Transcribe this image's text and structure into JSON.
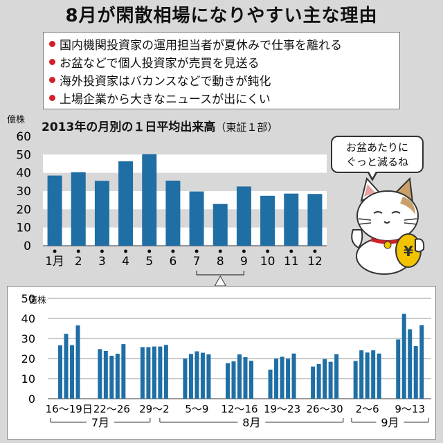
{
  "title": "8月が閑散相場になりやすい主な理由",
  "reasons": [
    "国内機関投資家の運用担当者が夏休みで仕事を離れる",
    "お盆などで個人投資家が売買を見送る",
    "海外投資家はバカンスなどで動きが鈍化",
    "上場企業から大きなニュースが出にくい"
  ],
  "speech": [
    "お盆あたりに",
    "ぐっと減るね"
  ],
  "colors": {
    "bar": "#1f6fa5",
    "bullet": "#d0202a",
    "band": "#ffffff",
    "background": "#d8d8d8"
  },
  "illustration": "maneki-neko-cat-icon",
  "chart_data": [
    {
      "type": "bar",
      "title": "2013年の月別の１日平均出来高",
      "subtitle": "（東証１部）",
      "ylabel": "億株",
      "ylim": [
        0,
        60
      ],
      "yticks": [
        0,
        10,
        20,
        30,
        40,
        50,
        60
      ],
      "categories": [
        "1月",
        "2",
        "3",
        "4",
        "5",
        "6",
        "7",
        "8",
        "9",
        "10",
        "11",
        "12"
      ],
      "values": [
        38.5,
        40.3,
        35.6,
        46.3,
        50.2,
        35.7,
        29.8,
        22.9,
        32.5,
        27.4,
        28.6,
        28.4
      ],
      "grid": "alternating bands"
    },
    {
      "type": "bar",
      "ylabel": "億株",
      "ylim": [
        0,
        50
      ],
      "yticks": [
        0,
        10,
        20,
        30,
        40,
        50
      ],
      "week_labels": [
        "16～19日",
        "22～26",
        "29～2",
        "5～9",
        "12～16",
        "19～23",
        "26～30",
        "2～6",
        "9～13"
      ],
      "month_labels": [
        "7月",
        "8月",
        "9月"
      ],
      "weeks": [
        [
          26.6,
          32.3,
          26.7,
          36.5
        ],
        [
          24.7,
          23.8,
          21.4,
          22.4,
          27.2
        ],
        [
          25.7,
          25.7,
          26.0,
          26.0,
          26.8
        ],
        [
          20.0,
          22.3,
          23.6,
          22.9,
          22.1
        ],
        [
          17.7,
          18.6,
          22.1,
          20.7,
          18.9
        ],
        [
          14.5,
          20.0,
          20.9,
          19.9,
          22.5
        ],
        [
          16.0,
          17.3,
          19.7,
          18.4,
          22.2
        ],
        [
          18.8,
          24.1,
          23.0,
          24.1,
          22.5
        ],
        [
          29.5,
          42.3,
          34.6,
          26.2,
          36.6
        ]
      ],
      "grid": "horizontal lines"
    }
  ]
}
